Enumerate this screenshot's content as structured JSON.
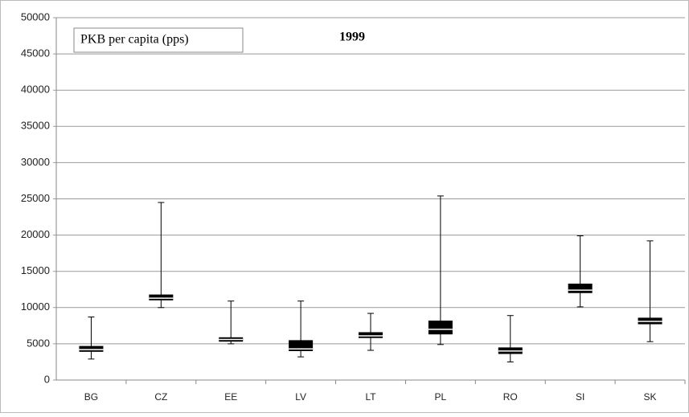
{
  "chart_data": {
    "type": "box",
    "title": "1999",
    "categories": [
      "BG",
      "CZ",
      "EE",
      "LV",
      "LT",
      "PL",
      "RO",
      "SI",
      "SK"
    ],
    "series": [
      {
        "name": "PKB per capita (pps)",
        "color": "#000000",
        "min": [
          2900,
          10000,
          5000,
          3200,
          4100,
          4900,
          2500,
          10100,
          5300
        ],
        "q1": [
          3900,
          11000,
          5300,
          4000,
          5800,
          6300,
          3600,
          12000,
          7700
        ],
        "median": [
          4200,
          11300,
          5600,
          4300,
          6100,
          7000,
          4000,
          12400,
          8100
        ],
        "q3": [
          4700,
          11800,
          5900,
          5500,
          6600,
          8200,
          4500,
          13300,
          8600
        ],
        "max": [
          8700,
          24500,
          10900,
          10900,
          9200,
          25400,
          8900,
          19900,
          19200
        ]
      }
    ],
    "ylim": [
      0,
      50000
    ],
    "yticks": [
      0,
      5000,
      10000,
      15000,
      20000,
      25000,
      30000,
      35000,
      40000,
      45000,
      50000
    ],
    "grid": true
  }
}
